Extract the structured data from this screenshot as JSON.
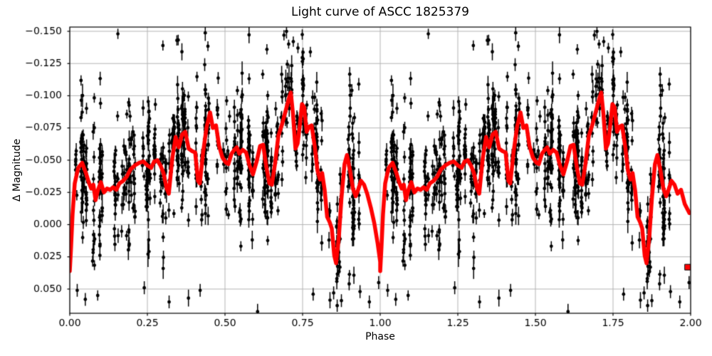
{
  "chart_data": {
    "type": "scatter",
    "title": "Light curve of ASCC 1825379",
    "xlabel": "Phase",
    "ylabel": "Δ Magnitude",
    "xlim": [
      0,
      2
    ],
    "ylim_top": -0.1533,
    "ylim_bottom": 0.0688,
    "y_inverted": true,
    "grid": true,
    "legend": "none",
    "xticks": {
      "values": [
        0,
        0.25,
        0.5,
        0.75,
        1.0,
        1.25,
        1.5,
        1.75,
        2.0
      ],
      "labels": [
        "0.00",
        "0.25",
        "0.50",
        "0.75",
        "1.00",
        "1.25",
        "1.50",
        "1.75",
        "2.00"
      ]
    },
    "yticks": {
      "values": [
        -0.15,
        -0.125,
        -0.1,
        -0.075,
        -0.05,
        -0.025,
        0.0,
        0.025,
        0.05
      ],
      "labels": [
        "−0.150",
        "−0.125",
        "−0.100",
        "−0.075",
        "−0.050",
        "−0.025",
        "0.000",
        "0.025",
        "0.050"
      ]
    },
    "colors": {
      "scatter": "#000000",
      "curve": "#ff0000",
      "grid": "#b4b4b4",
      "spine": "#000000",
      "background": "#ffffff"
    },
    "curve": {
      "description": "binned mean light curve, plotted over two phase cycles",
      "linewidth": 5.5,
      "period_points": [
        [
          0.0,
          0.036
        ],
        [
          0.004,
          0.018
        ],
        [
          0.009,
          -0.008
        ],
        [
          0.016,
          -0.032
        ],
        [
          0.027,
          -0.044
        ],
        [
          0.04,
          -0.048
        ],
        [
          0.052,
          -0.04
        ],
        [
          0.061,
          -0.033
        ],
        [
          0.069,
          -0.028
        ],
        [
          0.076,
          -0.031
        ],
        [
          0.083,
          -0.019
        ],
        [
          0.091,
          -0.027
        ],
        [
          0.1,
          -0.033
        ],
        [
          0.11,
          -0.025
        ],
        [
          0.12,
          -0.028
        ],
        [
          0.13,
          -0.027
        ],
        [
          0.14,
          -0.029
        ],
        [
          0.15,
          -0.027
        ],
        [
          0.16,
          -0.032
        ],
        [
          0.172,
          -0.034
        ],
        [
          0.183,
          -0.037
        ],
        [
          0.196,
          -0.043
        ],
        [
          0.21,
          -0.046
        ],
        [
          0.224,
          -0.048
        ],
        [
          0.237,
          -0.049
        ],
        [
          0.25,
          -0.046
        ],
        [
          0.262,
          -0.044
        ],
        [
          0.272,
          -0.049
        ],
        [
          0.282,
          -0.05
        ],
        [
          0.292,
          -0.046
        ],
        [
          0.302,
          -0.04
        ],
        [
          0.312,
          -0.028
        ],
        [
          0.319,
          -0.024
        ],
        [
          0.33,
          -0.051
        ],
        [
          0.341,
          -0.068
        ],
        [
          0.351,
          -0.06
        ],
        [
          0.362,
          -0.07
        ],
        [
          0.372,
          -0.072
        ],
        [
          0.383,
          -0.059
        ],
        [
          0.394,
          -0.057
        ],
        [
          0.404,
          -0.056
        ],
        [
          0.413,
          -0.034
        ],
        [
          0.419,
          -0.032
        ],
        [
          0.43,
          -0.057
        ],
        [
          0.441,
          -0.076
        ],
        [
          0.452,
          -0.087
        ],
        [
          0.461,
          -0.075
        ],
        [
          0.471,
          -0.077
        ],
        [
          0.481,
          -0.061
        ],
        [
          0.492,
          -0.052
        ],
        [
          0.503,
          -0.048
        ],
        [
          0.511,
          -0.047
        ],
        [
          0.521,
          -0.055
        ],
        [
          0.53,
          -0.058
        ],
        [
          0.538,
          -0.06
        ],
        [
          0.546,
          -0.055
        ],
        [
          0.557,
          -0.058
        ],
        [
          0.568,
          -0.056
        ],
        [
          0.579,
          -0.046
        ],
        [
          0.59,
          -0.039
        ],
        [
          0.602,
          -0.049
        ],
        [
          0.613,
          -0.061
        ],
        [
          0.623,
          -0.062
        ],
        [
          0.633,
          -0.045
        ],
        [
          0.643,
          -0.032
        ],
        [
          0.651,
          -0.031
        ],
        [
          0.661,
          -0.047
        ],
        [
          0.672,
          -0.069
        ],
        [
          0.684,
          -0.078
        ],
        [
          0.695,
          -0.088
        ],
        [
          0.706,
          -0.098
        ],
        [
          0.712,
          -0.1025
        ],
        [
          0.719,
          -0.086
        ],
        [
          0.727,
          -0.059
        ],
        [
          0.734,
          -0.063
        ],
        [
          0.741,
          -0.077
        ],
        [
          0.748,
          -0.0935
        ],
        [
          0.755,
          -0.091
        ],
        [
          0.763,
          -0.072
        ],
        [
          0.771,
          -0.076
        ],
        [
          0.779,
          -0.077
        ],
        [
          0.789,
          -0.061
        ],
        [
          0.798,
          -0.042
        ],
        [
          0.806,
          -0.035
        ],
        [
          0.813,
          -0.04
        ],
        [
          0.821,
          -0.027
        ],
        [
          0.829,
          -0.006
        ],
        [
          0.837,
          -0.002
        ],
        [
          0.844,
          0.003
        ],
        [
          0.852,
          0.024
        ],
        [
          0.858,
          0.03
        ],
        [
          0.867,
          0.009
        ],
        [
          0.875,
          -0.02
        ],
        [
          0.885,
          -0.047
        ],
        [
          0.893,
          -0.054
        ],
        [
          0.902,
          -0.043
        ],
        [
          0.912,
          -0.028
        ],
        [
          0.921,
          -0.022
        ],
        [
          0.929,
          -0.027
        ],
        [
          0.938,
          -0.034
        ],
        [
          0.948,
          -0.031
        ],
        [
          0.958,
          -0.024
        ],
        [
          0.97,
          -0.013
        ],
        [
          0.981,
          -0.001
        ],
        [
          0.992,
          0.015
        ],
        [
          1.0,
          0.029
        ]
      ],
      "second_period_cutoff": 0.96,
      "second_period_tail": [
        [
          1.969,
          -0.027
        ],
        [
          1.981,
          -0.016
        ],
        [
          1.996,
          -0.009
        ]
      ],
      "isolated_marker": {
        "phase": 1.991,
        "mag": 0.033,
        "size": 8
      }
    },
    "scatter": {
      "description": "photometric measurements with error bars, duplicated at phase+1",
      "seed": 42,
      "columns_per_period": 120,
      "points_per_column_min": 4,
      "points_per_column_max": 13,
      "main_band": [
        0.02,
        0.78
      ],
      "main_band_fraction": 0.88,
      "sparse_band": [
        0.78,
        0.995
      ],
      "phase_jitter_sigma": 0.0012,
      "column_offset_sigma": 0.008,
      "column_sigma_min": 0.009,
      "column_sigma_max": 0.033,
      "outlier_fraction": 0.07,
      "outlier_min": 0.02,
      "outlier_max": 0.06,
      "errorbar_base": 0.0032,
      "errorbar_scale": 0.0024,
      "marker_radius": 2.4,
      "errorbar_linewidth": 1.5,
      "extra_points": [
        [
          0.024,
          0.051,
          0.005
        ],
        [
          0.05,
          0.058,
          0.005
        ],
        [
          0.09,
          0.055,
          0.004
        ],
        [
          0.155,
          -0.148,
          0.004
        ],
        [
          0.24,
          0.049,
          0.005
        ],
        [
          0.3,
          -0.139,
          0.004
        ],
        [
          0.32,
          0.06,
          0.005
        ],
        [
          0.345,
          -0.143,
          0.004
        ],
        [
          0.42,
          0.051,
          0.005
        ],
        [
          0.605,
          0.0675,
          0.006
        ],
        [
          0.635,
          -0.136,
          0.004
        ],
        [
          0.69,
          -0.147,
          0.004
        ],
        [
          0.72,
          -0.142,
          0.004
        ],
        [
          0.735,
          -0.137,
          0.004
        ],
        [
          0.775,
          -0.134,
          0.004
        ],
        [
          0.784,
          0.054,
          0.005
        ],
        [
          0.85,
          0.053,
          0.005
        ],
        [
          0.875,
          0.059,
          0.005
        ],
        [
          0.9,
          0.046,
          0.005
        ],
        [
          0.935,
          0.052,
          0.005
        ],
        [
          0.965,
          0.06,
          0.005
        ],
        [
          0.995,
          0.045,
          0.005
        ]
      ]
    }
  }
}
